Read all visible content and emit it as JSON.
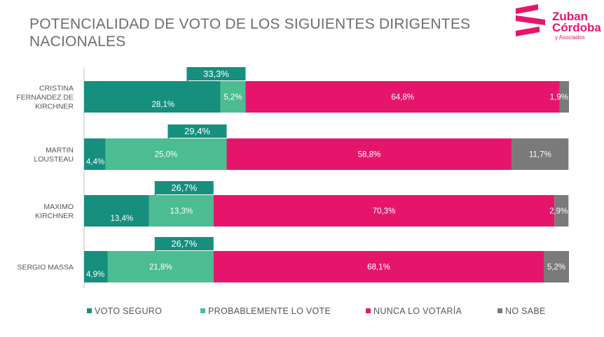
{
  "title": "POTENCIALIDAD DE VOTO DE LOS SIGUIENTES DIRIGENTES NACIONALES",
  "logo": {
    "line1": "Zuban",
    "line2": "Córdoba",
    "line3": "y Asociados"
  },
  "colors": {
    "voto_seguro": "#168f7e",
    "probablemente": "#4cbc92",
    "nunca": "#e6156c",
    "no_sabe": "#7a7a7a",
    "title": "#6d6d6d",
    "brand": "#e6156c"
  },
  "legend": [
    {
      "label": "VOTO SEGURO",
      "color": "#168f7e"
    },
    {
      "label": "PROBABLEMENTE LO VOTE",
      "color": "#4cbc92"
    },
    {
      "label": "NUNCA LO VOTARÍA",
      "color": "#e6156c"
    },
    {
      "label": "NO SABE",
      "color": "#7a7a7a"
    }
  ],
  "chart_data": {
    "type": "bar",
    "orientation": "horizontal",
    "stacked": true,
    "categories": [
      [
        "CRISTINA",
        "FERNÁNDEZ DE",
        "KIRCHNER"
      ],
      [
        "MARTIN",
        "LOUSTEAU"
      ],
      [
        "MAXIMO",
        "KIRCHNER"
      ],
      [
        "SERGIO MASSA"
      ]
    ],
    "series": [
      {
        "name": "VOTO SEGURO",
        "values": [
          28.1,
          4.4,
          13.4,
          4.9
        ],
        "labels": [
          "28,1%",
          "4,4%",
          "13,4%",
          "4,9%"
        ]
      },
      {
        "name": "PROBABLEMENTE LO VOTE",
        "values": [
          5.2,
          25.0,
          13.3,
          21.8
        ],
        "labels": [
          "5,2%",
          "25,0%",
          "13,3%",
          "21,8%"
        ]
      },
      {
        "name": "NUNCA LO VOTARÍA",
        "values": [
          64.8,
          58.8,
          70.3,
          68.1
        ],
        "labels": [
          "64,8%",
          "58,8%",
          "70,3%",
          "68,1%"
        ]
      },
      {
        "name": "NO SABE",
        "values": [
          1.9,
          11.7,
          2.9,
          5.2
        ],
        "labels": [
          "1,9%",
          "11,7%",
          "2,9%",
          "5,2%"
        ]
      }
    ],
    "totals_positive": {
      "values": [
        33.3,
        29.4,
        26.7,
        26.7
      ],
      "labels": [
        "33,3%",
        "29,4%",
        "26,7%",
        "26,7%"
      ]
    },
    "xlim": [
      0,
      100
    ],
    "grid": false,
    "legend_position": "bottom"
  }
}
